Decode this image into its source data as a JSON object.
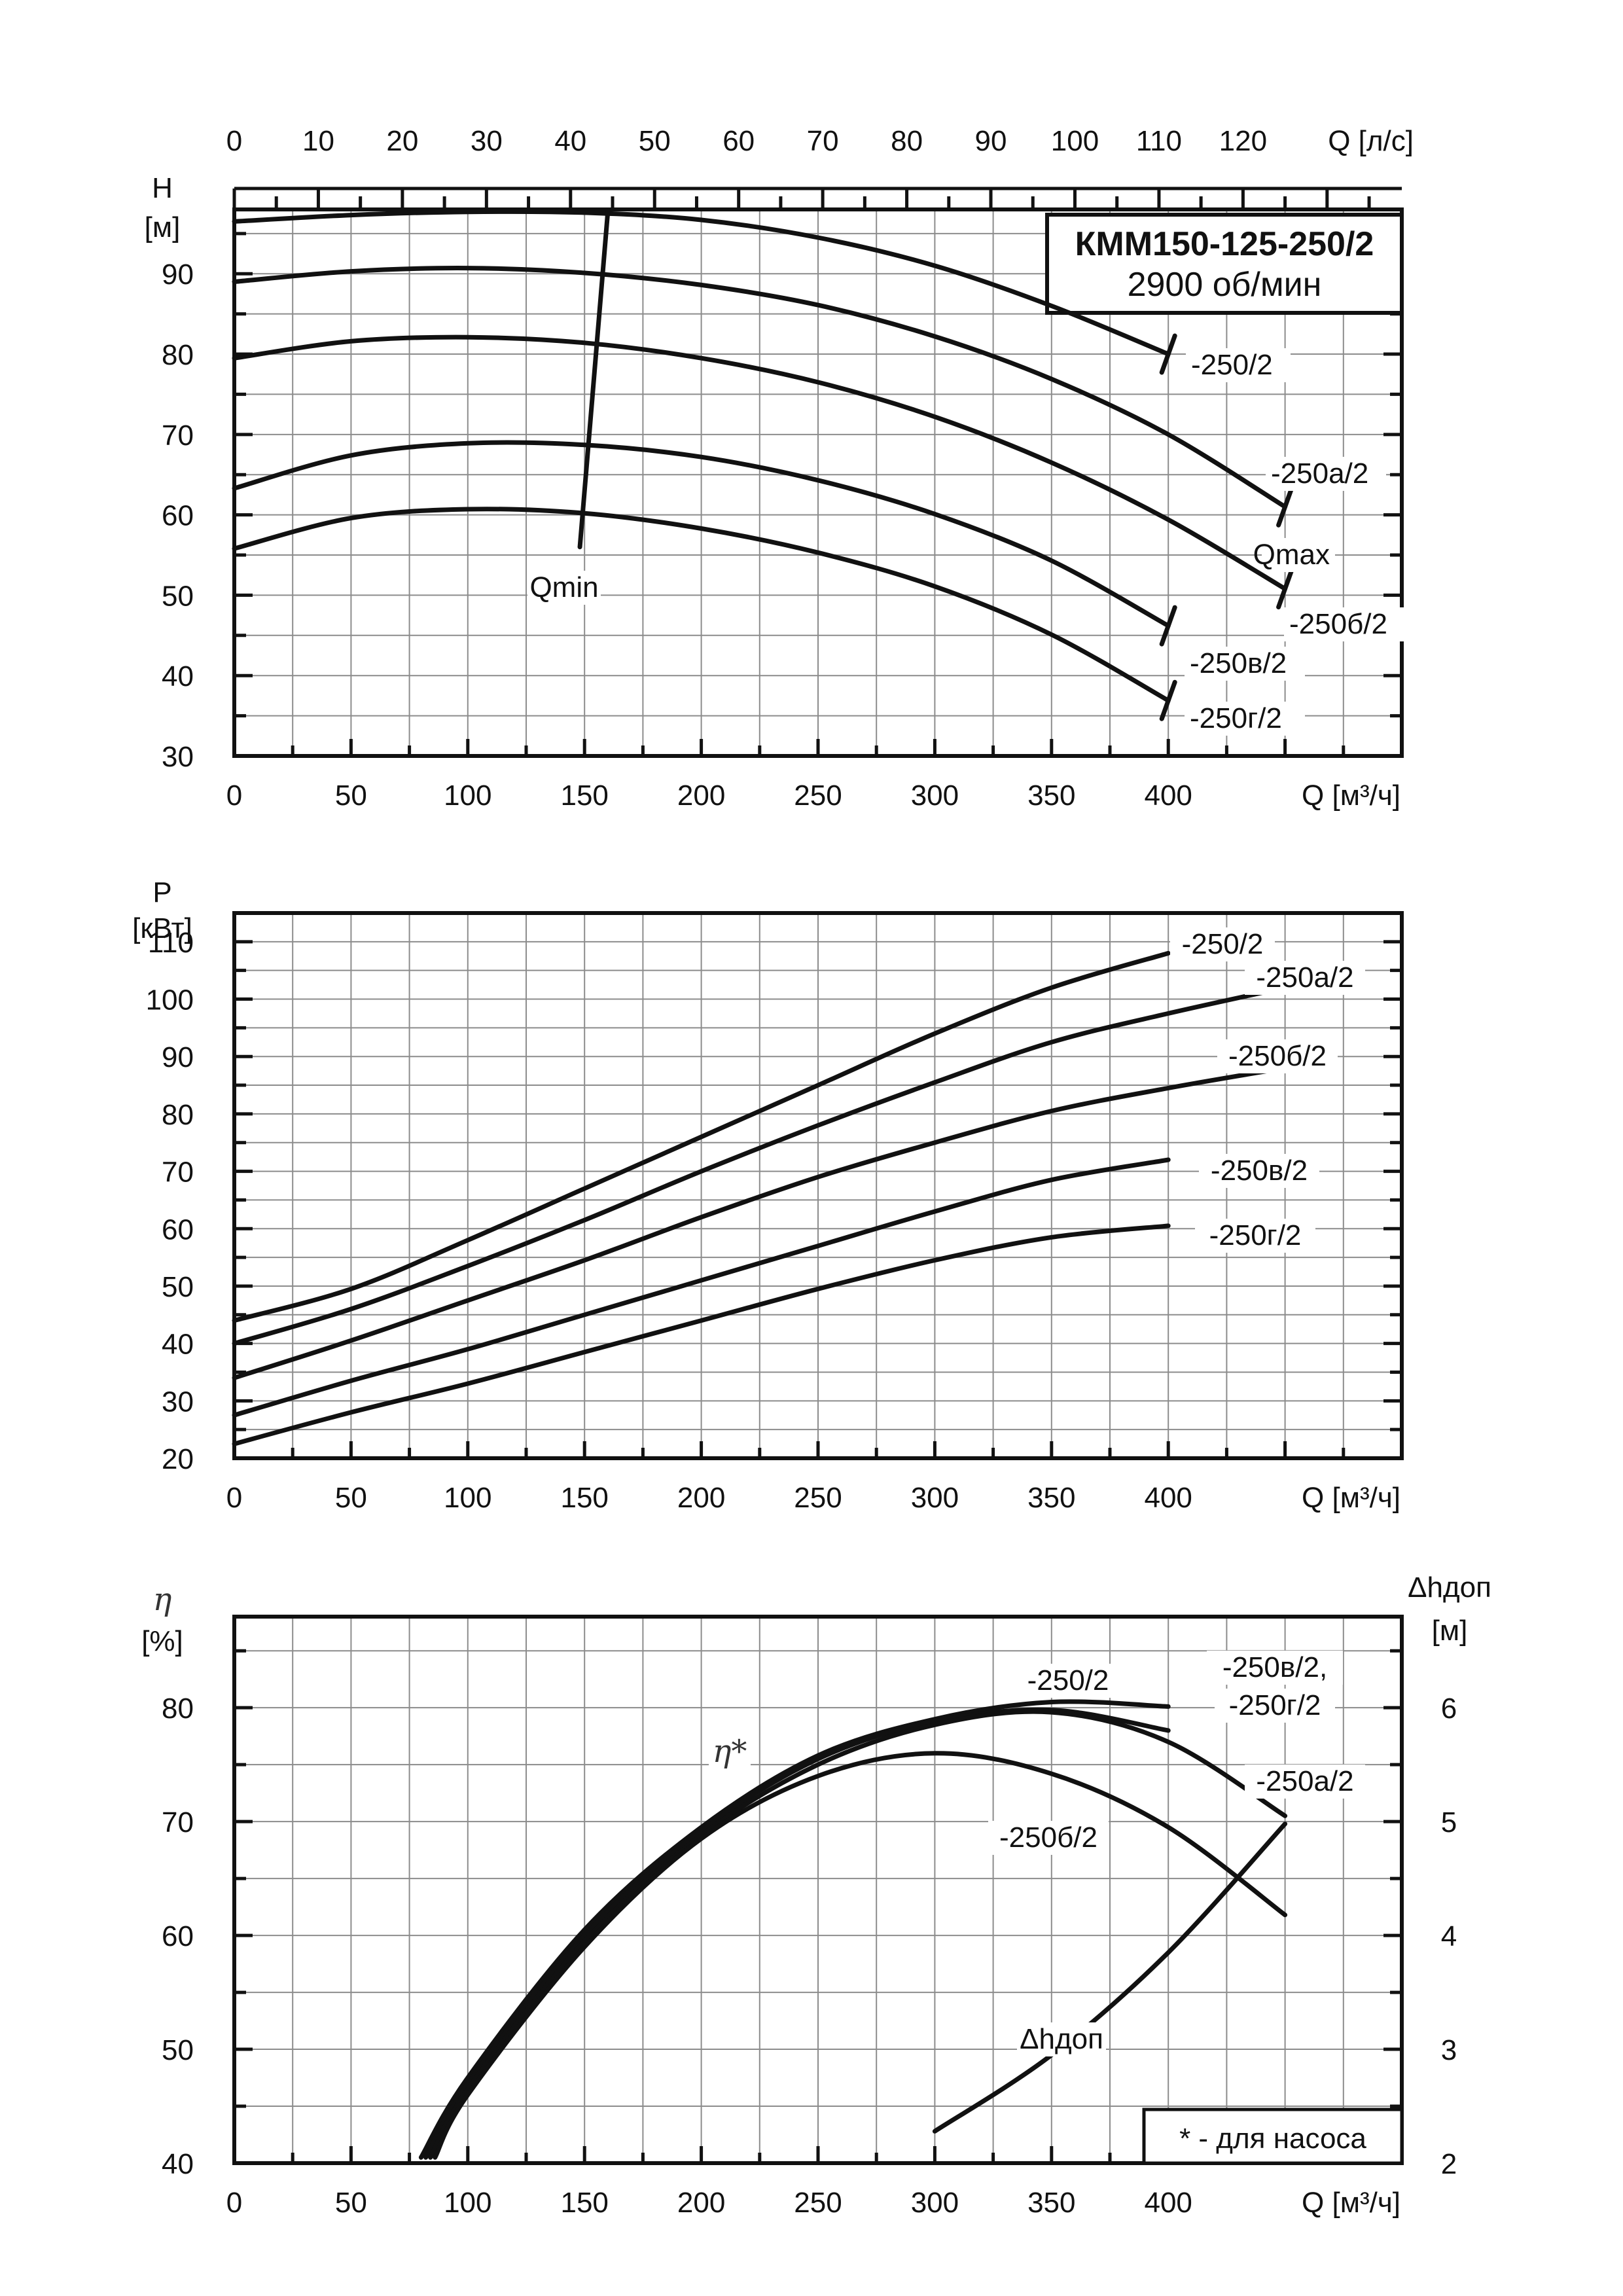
{
  "chart_data": [
    {
      "type": "line",
      "title": "КММ150-125-250/2",
      "subtitle": "2900 об/мин",
      "xlabel": "Q [м³/ч]",
      "x2label": "Q [л/с]",
      "ylabel": "H",
      "yunit": "[м]",
      "xlim": [
        0,
        500
      ],
      "ylim": [
        30,
        98
      ],
      "grid": true,
      "x_ticks": [
        0,
        50,
        100,
        150,
        200,
        250,
        300,
        350,
        400
      ],
      "y_ticks": [
        30,
        40,
        50,
        60,
        70,
        80,
        90
      ],
      "x2_ticks": [
        0,
        10,
        20,
        30,
        40,
        50,
        60,
        70,
        80,
        90,
        100,
        110,
        120
      ],
      "annotations": {
        "qmin": "Qmin",
        "qmax": "Qmax"
      },
      "qmin_line": {
        "x": [
          148,
          160
        ],
        "y": [
          56,
          97.8
        ]
      },
      "series": [
        {
          "name": "-250/2",
          "x": [
            0,
            50,
            100,
            150,
            200,
            250,
            300,
            350,
            400
          ],
          "y": [
            96.5,
            97.3,
            97.7,
            97.6,
            96.7,
            94.5,
            91.0,
            86.0,
            80.0
          ]
        },
        {
          "name": "-250а/2",
          "x": [
            0,
            50,
            100,
            150,
            200,
            250,
            300,
            350,
            400,
            450
          ],
          "y": [
            89.0,
            90.3,
            90.7,
            90.1,
            88.6,
            86.1,
            82.2,
            76.9,
            70.0,
            61.0
          ]
        },
        {
          "name": "-250б/2",
          "x": [
            0,
            50,
            100,
            150,
            200,
            250,
            300,
            350,
            400,
            450
          ],
          "y": [
            79.5,
            81.6,
            82.1,
            81.4,
            79.5,
            76.5,
            72.2,
            66.5,
            59.4,
            50.8
          ]
        },
        {
          "name": "-250в/2",
          "x": [
            0,
            50,
            100,
            150,
            200,
            250,
            300,
            350,
            400
          ],
          "y": [
            63.3,
            67.4,
            68.9,
            68.7,
            67.2,
            64.3,
            60.1,
            54.3,
            46.2
          ]
        },
        {
          "name": "-250г/2",
          "x": [
            0,
            50,
            100,
            150,
            200,
            250,
            300,
            350,
            400
          ],
          "y": [
            55.8,
            59.6,
            60.7,
            60.2,
            58.3,
            55.3,
            51.1,
            45.1,
            36.9
          ]
        }
      ]
    },
    {
      "type": "line",
      "xlabel": "Q [м³/ч]",
      "ylabel": "P",
      "yunit": "[кВт]",
      "xlim": [
        0,
        500
      ],
      "ylim": [
        20,
        115
      ],
      "grid": true,
      "x_ticks": [
        0,
        50,
        100,
        150,
        200,
        250,
        300,
        350,
        400
      ],
      "y_ticks": [
        20,
        30,
        40,
        50,
        60,
        70,
        80,
        90,
        100,
        110
      ],
      "series": [
        {
          "name": "-250/2",
          "x": [
            0,
            50,
            100,
            150,
            200,
            250,
            300,
            350,
            400
          ],
          "y": [
            44,
            49.5,
            58,
            67,
            76,
            85,
            94,
            102,
            108
          ]
        },
        {
          "name": "-250а/2",
          "x": [
            0,
            50,
            100,
            150,
            200,
            250,
            300,
            350,
            400,
            450
          ],
          "y": [
            40,
            46,
            53.5,
            61.5,
            70,
            78,
            85.5,
            92.5,
            97.5,
            102
          ]
        },
        {
          "name": "-250б/2",
          "x": [
            0,
            50,
            100,
            150,
            200,
            250,
            300,
            350,
            400,
            450
          ],
          "y": [
            34,
            40.5,
            47.5,
            54.5,
            62,
            69,
            75,
            80.5,
            84.5,
            88
          ]
        },
        {
          "name": "-250в/2",
          "x": [
            0,
            50,
            100,
            150,
            200,
            250,
            300,
            350,
            400
          ],
          "y": [
            27.5,
            33.5,
            39,
            45,
            51,
            57,
            63,
            68.5,
            72
          ]
        },
        {
          "name": "-250г/2",
          "x": [
            0,
            50,
            100,
            150,
            200,
            250,
            300,
            350,
            400
          ],
          "y": [
            22.5,
            28,
            33,
            38.5,
            44,
            49.5,
            54.5,
            58.5,
            60.5
          ]
        }
      ]
    },
    {
      "type": "line",
      "xlabel": "Q [м³/ч]",
      "ylabel": "η",
      "yunit": "[%]",
      "y2label": "Δhдоп",
      "y2unit": "[м]",
      "xlim": [
        0,
        500
      ],
      "ylim": [
        40,
        88
      ],
      "y2lim": [
        2,
        6.8
      ],
      "grid": true,
      "x_ticks": [
        0,
        50,
        100,
        150,
        200,
        250,
        300,
        350,
        400
      ],
      "y_ticks": [
        40,
        50,
        60,
        70,
        80
      ],
      "y2_ticks": [
        2,
        3,
        4,
        5,
        6
      ],
      "eta_marker": "η*",
      "dh_label": "Δhдоп",
      "legend_note": "* - для насоса",
      "series": [
        {
          "name": "-250/2",
          "x": [
            80,
            100,
            150,
            200,
            250,
            300,
            350,
            400
          ],
          "y": [
            40.5,
            47.5,
            60.5,
            69.5,
            75.8,
            79.0,
            80.5,
            80.1
          ]
        },
        {
          "name": "-250в/2, -250г/2",
          "x": [
            82,
            100,
            150,
            200,
            250,
            300,
            350,
            400
          ],
          "y": [
            40.5,
            47,
            60,
            69.2,
            75.5,
            78.8,
            79.8,
            78.0
          ]
        },
        {
          "name": "-250а/2",
          "x": [
            84,
            100,
            150,
            200,
            250,
            300,
            350,
            400,
            450
          ],
          "y": [
            40.5,
            46.5,
            59.5,
            68.8,
            75.0,
            78.5,
            79.6,
            77.0,
            70.5
          ]
        },
        {
          "name": "-250б/2",
          "x": [
            86,
            100,
            150,
            200,
            250,
            300,
            350,
            400,
            450
          ],
          "y": [
            40.5,
            46,
            59,
            68.5,
            74.0,
            76.0,
            74.2,
            69.5,
            61.8
          ]
        },
        {
          "name": "Δhдоп",
          "axis": "y2",
          "x": [
            300,
            350,
            400,
            450
          ],
          "y": [
            2.28,
            2.95,
            3.85,
            4.98
          ]
        }
      ]
    }
  ]
}
